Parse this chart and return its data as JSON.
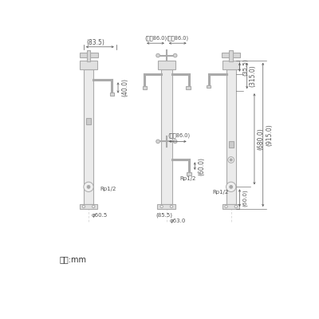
{
  "bg_color": "#ffffff",
  "line_color": "#aaaaaa",
  "dim_color": "#555555",
  "text_color": "#333333",
  "unit_label": "単位:mm",
  "dim_83_5": "(83.5)",
  "dim_max86_top_l": "(最大86.0)",
  "dim_max86_top_r": "(最大86.0)",
  "dim_max86_mid": "(最大86.0)",
  "dim_40": "(40.0)",
  "dim_60_c": "(60.0)",
  "dim_85_5": "(85.5)",
  "dim_35_5": "(35.5)",
  "dim_315": "(315.0)",
  "dim_680": "(680.0)",
  "dim_915": "(915.0)",
  "dim_60_r": "(60.0)",
  "rp_half": "Rp1/2",
  "phi_60_5": "φ60.5",
  "phi_63": "φ63.0"
}
